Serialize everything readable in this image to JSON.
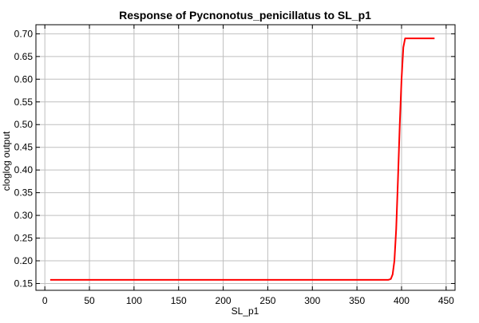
{
  "chart_data": {
    "type": "line",
    "title": "Response of Pycnonotus_penicillatus to SL_p1",
    "xlabel": "SL_p1",
    "ylabel": "cloglog output",
    "xlim": [
      -10,
      460
    ],
    "ylim": [
      0.135,
      0.72
    ],
    "xticks": [
      0,
      50,
      100,
      150,
      200,
      250,
      300,
      350,
      400,
      450
    ],
    "yticks": [
      0.15,
      0.2,
      0.25,
      0.3,
      0.35,
      0.4,
      0.45,
      0.5,
      0.55,
      0.6,
      0.65,
      0.7
    ],
    "grid": true,
    "series": [
      {
        "color": "#ff0000",
        "x": [
          6,
          100,
          200,
          300,
          385,
          388,
          390,
          392,
          394,
          396,
          398,
          400,
          402,
          404,
          420,
          437
        ],
        "y": [
          0.158,
          0.158,
          0.158,
          0.158,
          0.158,
          0.16,
          0.17,
          0.2,
          0.27,
          0.38,
          0.5,
          0.6,
          0.67,
          0.69,
          0.69,
          0.69
        ]
      }
    ]
  }
}
